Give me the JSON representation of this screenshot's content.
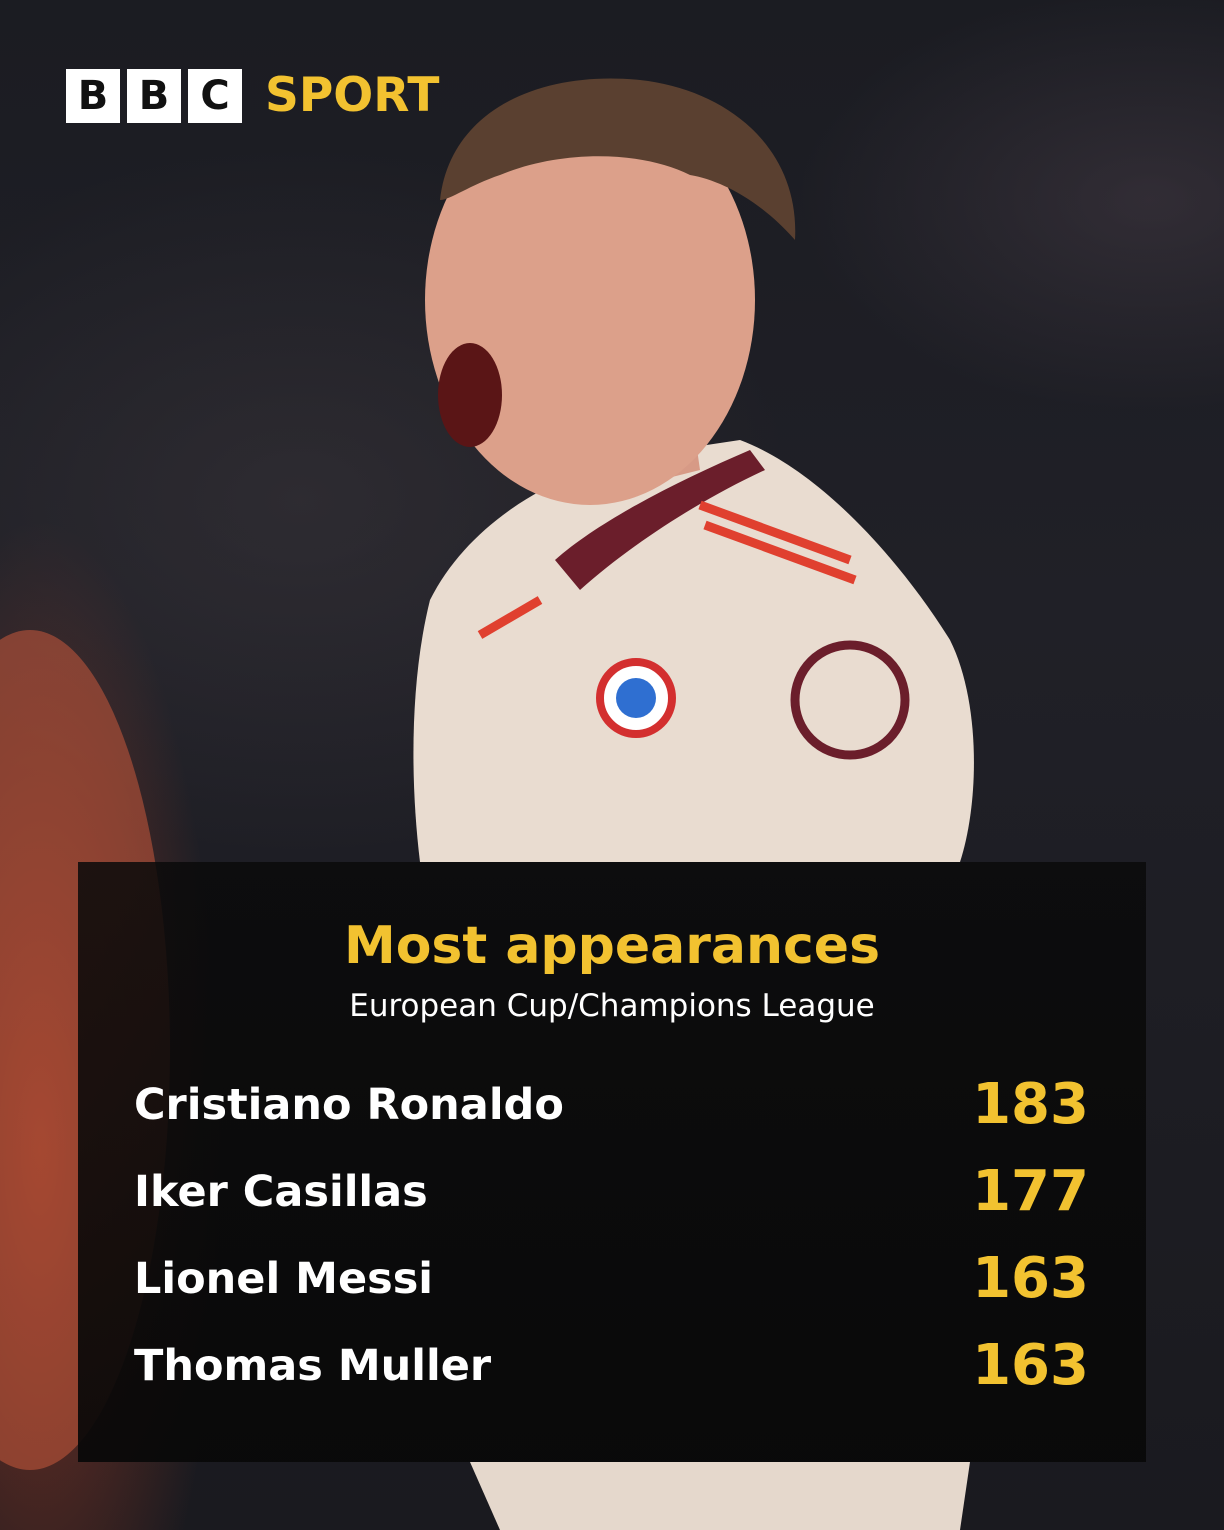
{
  "brand": {
    "logo_letters": [
      "B",
      "B",
      "C"
    ],
    "logo_text": "SPORT"
  },
  "colors": {
    "accent": "#f2c230",
    "text": "#ffffff",
    "panel": "#0a0a0a"
  },
  "chart_data": {
    "type": "table",
    "title": "Most appearances",
    "subtitle": "European Cup/Champions League",
    "rows": [
      {
        "player": "Cristiano Ronaldo",
        "appearances": 183
      },
      {
        "player": "Iker Casillas",
        "appearances": 177
      },
      {
        "player": "Lionel Messi",
        "appearances": 163
      },
      {
        "player": "Thomas Muller",
        "appearances": 163
      }
    ]
  }
}
